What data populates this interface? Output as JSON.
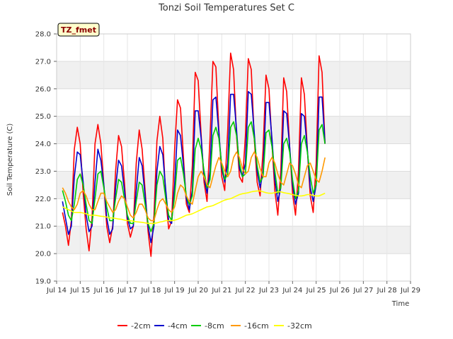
{
  "chart_data": {
    "type": "line",
    "title": "Tonzi Soil Temperatures Set C",
    "xlabel": "Time",
    "ylabel": "Soil Temperature (C)",
    "badge": "TZ_fmet",
    "xlim": [
      14,
      29
    ],
    "ylim": [
      19.0,
      28.0
    ],
    "x_ticks": [
      14,
      15,
      16,
      17,
      18,
      19,
      20,
      21,
      22,
      23,
      24,
      25,
      26,
      27,
      28,
      29
    ],
    "x_tick_labels": [
      "Jul 14",
      "Jul 15",
      "Jul 16",
      "Jul 17",
      "Jul 18",
      "Jul 19",
      "Jul 20",
      "Jul 21",
      "Jul 22",
      "Jul 23",
      "Jul 24",
      "Jul 25",
      "Jul 26",
      "Jul 27",
      "Jul 28",
      "Jul 29"
    ],
    "y_ticks": [
      19.0,
      20.0,
      21.0,
      22.0,
      23.0,
      24.0,
      25.0,
      26.0,
      27.0,
      28.0
    ],
    "y_tick_labels": [
      "19.0",
      "20.0",
      "21.0",
      "22.0",
      "23.0",
      "24.0",
      "25.0",
      "26.0",
      "27.0",
      "28.0"
    ],
    "grid": true,
    "legend_position": "bottom",
    "x_start": 14.25,
    "x_step": 0.125,
    "series": [
      {
        "name": "-2cm",
        "color": "#ff0000",
        "values": [
          21.5,
          21.0,
          20.3,
          21.2,
          23.8,
          24.6,
          24.0,
          22.2,
          20.9,
          20.1,
          21.3,
          24.0,
          24.7,
          24.0,
          22.5,
          21.0,
          20.4,
          21.0,
          23.0,
          24.3,
          23.9,
          22.6,
          21.1,
          20.6,
          21.0,
          23.3,
          24.5,
          23.8,
          22.3,
          20.8,
          19.9,
          21.4,
          24.1,
          25.0,
          24.2,
          22.0,
          20.9,
          21.2,
          23.8,
          25.6,
          25.3,
          23.5,
          21.8,
          21.5,
          23.2,
          26.6,
          26.3,
          24.3,
          22.6,
          21.9,
          24.2,
          27.0,
          26.8,
          24.5,
          22.8,
          22.3,
          24.5,
          27.3,
          26.7,
          24.3,
          22.8,
          22.6,
          24.3,
          27.1,
          26.7,
          24.2,
          22.6,
          22.1,
          23.8,
          26.5,
          26.0,
          24.0,
          22.3,
          21.4,
          23.0,
          26.4,
          25.9,
          23.9,
          22.2,
          21.4,
          23.0,
          26.4,
          25.8,
          23.8,
          22.1,
          21.5,
          23.3,
          27.2,
          26.6,
          24.0
        ]
      },
      {
        "name": "-4cm",
        "color": "#0000cc",
        "values": [
          21.9,
          21.3,
          20.7,
          21.0,
          22.8,
          23.7,
          23.6,
          22.6,
          21.4,
          20.8,
          21.0,
          22.6,
          23.8,
          23.4,
          22.5,
          21.3,
          20.7,
          20.9,
          22.4,
          23.4,
          23.2,
          22.3,
          21.3,
          20.9,
          21.0,
          22.3,
          23.5,
          23.2,
          22.1,
          21.0,
          20.4,
          21.0,
          23.0,
          23.9,
          23.6,
          22.3,
          21.2,
          21.1,
          22.5,
          24.5,
          24.3,
          23.2,
          22.0,
          21.6,
          22.3,
          25.2,
          25.2,
          24.2,
          22.8,
          22.2,
          23.0,
          25.6,
          25.7,
          24.4,
          23.1,
          22.6,
          23.3,
          25.8,
          25.8,
          24.5,
          23.1,
          22.8,
          23.3,
          25.9,
          25.8,
          24.4,
          23.0,
          22.4,
          23.0,
          25.5,
          25.5,
          24.2,
          22.7,
          21.9,
          22.4,
          25.2,
          25.1,
          23.9,
          22.5,
          21.8,
          22.2,
          25.1,
          25.0,
          23.8,
          22.4,
          21.9,
          22.5,
          25.7,
          25.7,
          24.0
        ]
      },
      {
        "name": "-8cm",
        "color": "#00cc00",
        "values": [
          22.3,
          21.9,
          21.4,
          21.2,
          21.8,
          22.7,
          22.9,
          22.5,
          21.8,
          21.2,
          21.1,
          22.0,
          22.9,
          23.0,
          22.4,
          21.7,
          21.2,
          21.2,
          22.0,
          22.7,
          22.6,
          22.0,
          21.4,
          21.1,
          21.1,
          21.9,
          22.6,
          22.5,
          21.8,
          21.1,
          20.8,
          21.1,
          22.5,
          23.0,
          22.8,
          22.0,
          21.4,
          21.2,
          22.1,
          23.4,
          23.5,
          22.9,
          22.1,
          21.8,
          22.1,
          23.8,
          24.2,
          23.8,
          23.0,
          22.4,
          22.7,
          24.3,
          24.6,
          24.2,
          23.2,
          22.7,
          22.9,
          24.6,
          24.8,
          24.3,
          23.3,
          22.8,
          22.9,
          24.6,
          24.8,
          24.2,
          23.2,
          22.6,
          22.8,
          24.4,
          24.5,
          23.9,
          23.0,
          22.2,
          22.4,
          24.0,
          24.2,
          23.7,
          22.7,
          22.0,
          22.3,
          24.0,
          24.3,
          23.7,
          22.8,
          22.2,
          22.5,
          24.5,
          24.7,
          24.0
        ]
      },
      {
        "name": "-16cm",
        "color": "#ff9900",
        "values": [
          22.4,
          22.2,
          21.9,
          21.7,
          21.6,
          21.8,
          22.2,
          22.3,
          22.1,
          21.8,
          21.6,
          21.6,
          21.9,
          22.2,
          22.2,
          21.9,
          21.7,
          21.5,
          21.6,
          21.9,
          22.1,
          22.0,
          21.7,
          21.4,
          21.3,
          21.5,
          21.8,
          21.8,
          21.6,
          21.3,
          21.2,
          21.2,
          21.6,
          21.9,
          22.0,
          21.8,
          21.6,
          21.5,
          21.7,
          22.2,
          22.5,
          22.4,
          22.1,
          21.9,
          21.8,
          22.3,
          22.8,
          23.0,
          22.8,
          22.5,
          22.4,
          22.8,
          23.2,
          23.5,
          23.3,
          23.0,
          22.8,
          23.0,
          23.5,
          23.7,
          23.5,
          23.1,
          22.9,
          23.0,
          23.5,
          23.7,
          23.5,
          23.1,
          22.8,
          22.8,
          23.3,
          23.5,
          23.3,
          22.9,
          22.6,
          22.5,
          22.9,
          23.3,
          23.2,
          22.9,
          22.5,
          22.4,
          22.8,
          23.2,
          23.3,
          23.0,
          22.7,
          22.6,
          23.0,
          23.5
        ]
      },
      {
        "name": "-32cm",
        "color": "#ffff00",
        "values": [
          21.7,
          21.65,
          21.6,
          21.55,
          21.5,
          21.5,
          21.5,
          21.48,
          21.45,
          21.4,
          21.4,
          21.4,
          21.38,
          21.36,
          21.35,
          21.33,
          21.3,
          21.3,
          21.28,
          21.26,
          21.25,
          21.22,
          21.2,
          21.2,
          21.18,
          21.16,
          21.15,
          21.14,
          21.12,
          21.1,
          21.1,
          21.1,
          21.12,
          21.15,
          21.17,
          21.2,
          21.2,
          21.2,
          21.22,
          21.25,
          21.3,
          21.35,
          21.4,
          21.42,
          21.45,
          21.5,
          21.55,
          21.6,
          21.65,
          21.7,
          21.72,
          21.75,
          21.8,
          21.85,
          21.9,
          21.95,
          21.98,
          22.0,
          22.05,
          22.1,
          22.15,
          22.18,
          22.2,
          22.22,
          22.25,
          22.27,
          22.28,
          22.28,
          22.25,
          22.22,
          22.2,
          22.2,
          22.22,
          22.25,
          22.25,
          22.22,
          22.2,
          22.18,
          22.15,
          22.12,
          22.1,
          22.1,
          22.12,
          22.15,
          22.15,
          22.12,
          22.1,
          22.1,
          22.15,
          22.2
        ]
      }
    ]
  }
}
